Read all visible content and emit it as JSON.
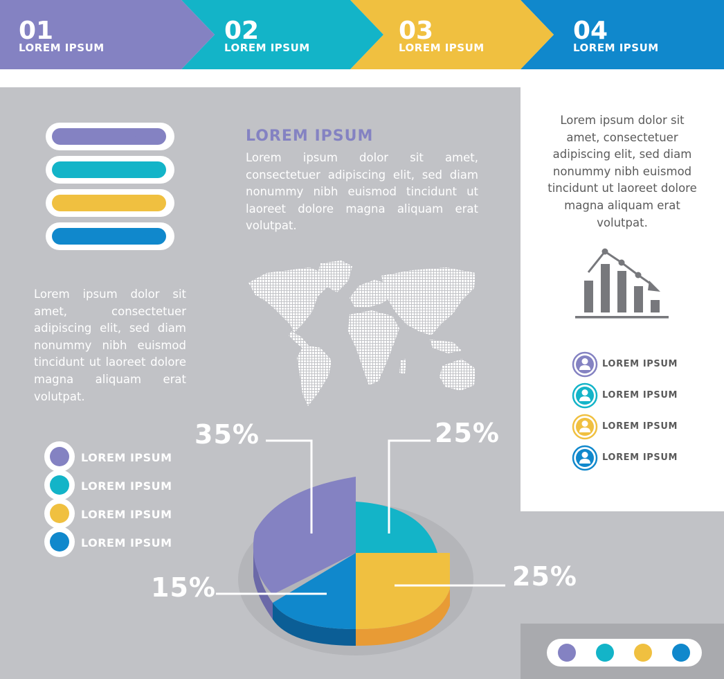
{
  "steps": [
    {
      "number": "01",
      "label": "LOREM IPSUM",
      "color": "#8482c2"
    },
    {
      "number": "02",
      "label": "LOREM IPSUM",
      "color": "#13b4c8"
    },
    {
      "number": "03",
      "label": "LOREM IPSUM",
      "color": "#f0c040"
    },
    {
      "number": "04",
      "label": "LOREM IPSUM",
      "color": "#1088cc"
    }
  ],
  "progress": [
    {
      "label": "35%",
      "value": 35,
      "color": "#8482c2"
    },
    {
      "label": "25%",
      "value": 25,
      "color": "#13b4c8"
    },
    {
      "label": "25%",
      "value": 25,
      "color": "#f0c040"
    },
    {
      "label": "15%",
      "value": 15,
      "color": "#1088cc"
    }
  ],
  "center_block": {
    "title": "LOREM IPSUM",
    "text": "Lorem ipsum dolor sit amet, consectetuer adipiscing elit, sed diam nonummy nibh euismod tincidunt ut laoreet dolore magna aliquam erat volutpat."
  },
  "left_text": "Lorem ipsum dolor sit amet, consectetuer adipiscing elit, sed diam nonummy nibh euismod tincidunt ut laoreet dolore magna aliquam erat volutpat.",
  "right_panel": {
    "text": "Lorem ipsum dolor sit amet, consectetuer adipiscing elit, sed diam nonummy nibh euismod tincidunt ut laoreet dolore magna aliquam erat volutpat.",
    "icon": "declining-bar-chart-icon",
    "people": [
      {
        "label": "LOREM IPSUM",
        "color": "#8482c2"
      },
      {
        "label": "LOREM IPSUM",
        "color": "#13b4c8"
      },
      {
        "label": "LOREM IPSUM",
        "color": "#f0c040"
      },
      {
        "label": "LOREM IPSUM",
        "color": "#1088cc"
      }
    ]
  },
  "legend": [
    {
      "label": "LOREM IPSUM",
      "color": "#8482c2"
    },
    {
      "label": "LOREM IPSUM",
      "color": "#13b4c8"
    },
    {
      "label": "LOREM IPSUM",
      "color": "#f0c040"
    },
    {
      "label": "LOREM IPSUM",
      "color": "#1088cc"
    }
  ],
  "map_icon": "world-map-icon",
  "pie": {
    "slices": [
      {
        "label": "35%",
        "value": 35,
        "color": "#8482c2"
      },
      {
        "label": "25%",
        "value": 25,
        "color": "#13b4c8"
      },
      {
        "label": "25%",
        "value": 25,
        "color": "#f0c040"
      },
      {
        "label": "15%",
        "value": 15,
        "color": "#1088cc"
      }
    ]
  },
  "footer_dots": [
    "#8482c2",
    "#13b4c8",
    "#f0c040",
    "#1088cc"
  ]
}
